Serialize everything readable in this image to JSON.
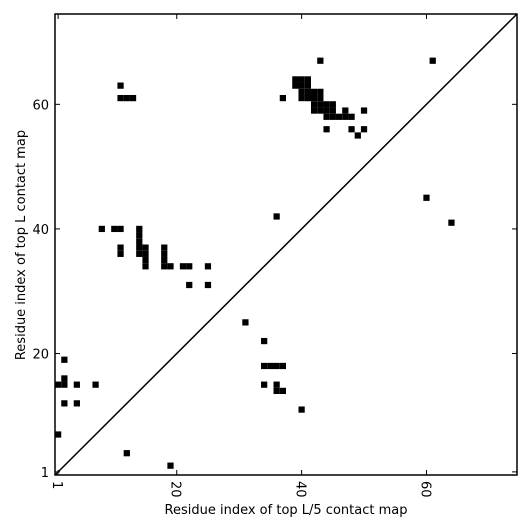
{
  "chart_data": {
    "type": "scatter",
    "xlabel": "Residue index of top L/5 contact map",
    "ylabel": "Residue index of top L contact map",
    "xlim": [
      0.5,
      74.5
    ],
    "ylim": [
      0.5,
      74.5
    ],
    "xticks": [
      1,
      20,
      40,
      60
    ],
    "yticks": [
      1,
      20,
      40,
      60
    ],
    "diagonal": true,
    "series": [
      {
        "color": "#000000",
        "x": [
          1,
          1,
          2,
          2,
          2,
          2,
          4,
          4,
          7,
          8,
          10,
          11,
          11,
          11,
          12,
          13,
          11,
          11,
          12,
          14,
          14,
          14,
          14,
          14,
          15,
          15,
          15,
          15,
          18,
          18,
          18,
          18,
          19,
          19,
          21,
          22,
          22,
          25,
          25,
          31,
          34,
          34,
          35,
          36,
          37,
          34,
          36,
          36,
          37,
          40,
          36,
          37,
          39,
          40,
          41,
          39,
          40,
          41,
          40,
          41,
          42,
          43,
          40,
          41,
          42,
          43,
          42,
          43,
          42,
          43,
          44,
          45,
          44,
          45,
          44,
          45,
          46,
          47,
          48,
          47,
          50,
          43,
          44,
          48,
          49,
          50,
          60,
          64,
          61
        ],
        "y": [
          7,
          15,
          15,
          16,
          19,
          12,
          15,
          12,
          15,
          40,
          40,
          40,
          63,
          61,
          61,
          61,
          37,
          36,
          4,
          40,
          39,
          38,
          37,
          36,
          37,
          36,
          35,
          34,
          37,
          36,
          35,
          34,
          34,
          2,
          34,
          34,
          31,
          34,
          31,
          25,
          22,
          18,
          18,
          18,
          18,
          15,
          15,
          14,
          14,
          11,
          42,
          61,
          64,
          64,
          64,
          63,
          63,
          63,
          62,
          62,
          62,
          62,
          61,
          61,
          61,
          61,
          60,
          60,
          59,
          59,
          60,
          60,
          59,
          59,
          58,
          58,
          58,
          58,
          58,
          59,
          59,
          67,
          56,
          56,
          55,
          56,
          45,
          41,
          67
        ]
      }
    ]
  }
}
